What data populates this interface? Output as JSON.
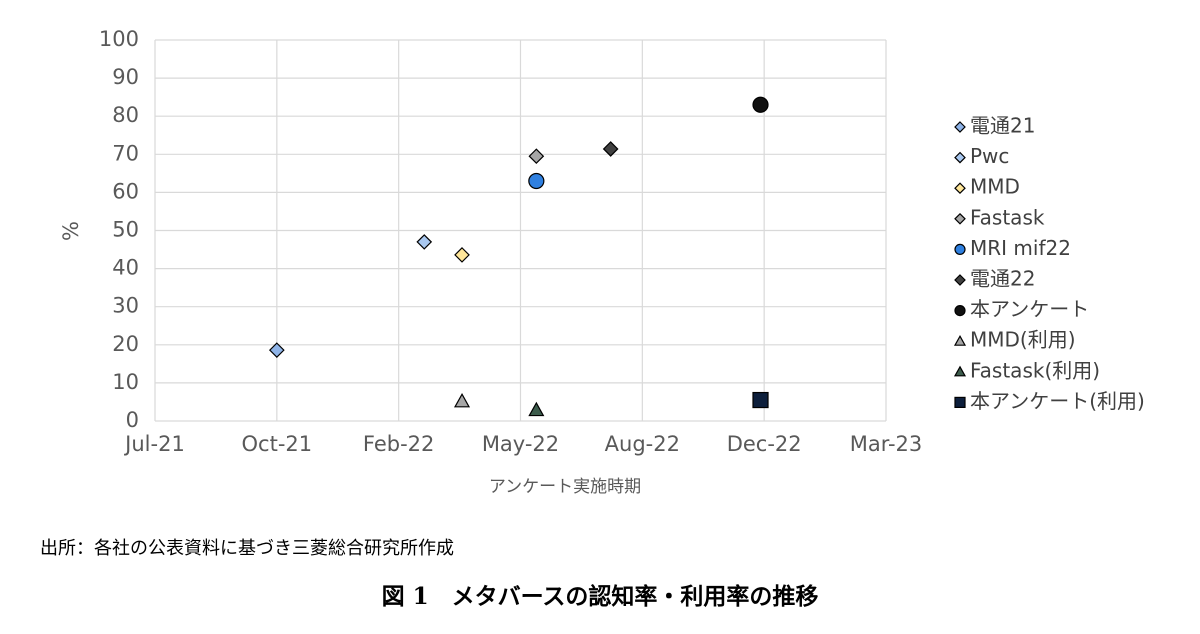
{
  "chart_data": {
    "type": "scatter",
    "xlabel": "アンケート実施時期",
    "ylabel": "%",
    "xlim": [
      0,
      6
    ],
    "xticks": [
      {
        "value": 0,
        "label": "Jul-21"
      },
      {
        "value": 1,
        "label": "Oct-21"
      },
      {
        "value": 2,
        "label": "Feb-22"
      },
      {
        "value": 3,
        "label": "May-22"
      },
      {
        "value": 4,
        "label": "Aug-22"
      },
      {
        "value": 5,
        "label": "Dec-22"
      },
      {
        "value": 6,
        "label": "Mar-23"
      }
    ],
    "ylim": [
      0,
      100
    ],
    "yticks": [
      0,
      10,
      20,
      30,
      40,
      50,
      60,
      70,
      80,
      90,
      100
    ],
    "grid": true,
    "legend": "right",
    "series": [
      {
        "name": "電通21",
        "color": "#8fb4e8",
        "marker": "diamond",
        "x": [
          1.0
        ],
        "values": [
          18.6
        ]
      },
      {
        "name": "Pwc",
        "color": "#a9c8f0",
        "marker": "diamond",
        "x": [
          2.21
        ],
        "values": [
          47
        ]
      },
      {
        "name": "MMD",
        "color": "#ffe699",
        "marker": "diamond",
        "x": [
          2.52
        ],
        "values": [
          43.6
        ]
      },
      {
        "name": "Fastask",
        "color": "#a6a6a6",
        "marker": "diamond",
        "x": [
          3.13
        ],
        "values": [
          69.5
        ]
      },
      {
        "name": "MRI mif22",
        "color": "#2f80e0",
        "marker": "circle",
        "x": [
          3.13
        ],
        "values": [
          63
        ]
      },
      {
        "name": "電通22",
        "color": "#404040",
        "marker": "diamond",
        "x": [
          3.74
        ],
        "values": [
          71.4
        ]
      },
      {
        "name": "本アンケート",
        "color": "#111111",
        "marker": "circle",
        "x": [
          4.97
        ],
        "values": [
          83
        ]
      },
      {
        "name": "MMD(利用)",
        "color": "#a6a6a6",
        "marker": "triangle",
        "x": [
          2.52
        ],
        "values": [
          5.2
        ]
      },
      {
        "name": "Fastask(利用)",
        "color": "#3d5c4c",
        "marker": "triangle",
        "x": [
          3.13
        ],
        "values": [
          2.9
        ]
      },
      {
        "name": "本アンケート(利用)",
        "color": "#0d1f3c",
        "marker": "square",
        "x": [
          4.97
        ],
        "values": [
          5.5
        ]
      }
    ]
  },
  "source": "出所：各社の公表資料に基づき三菱総合研究所作成",
  "caption": "図 1　メタバースの認知率・利用率の推移"
}
